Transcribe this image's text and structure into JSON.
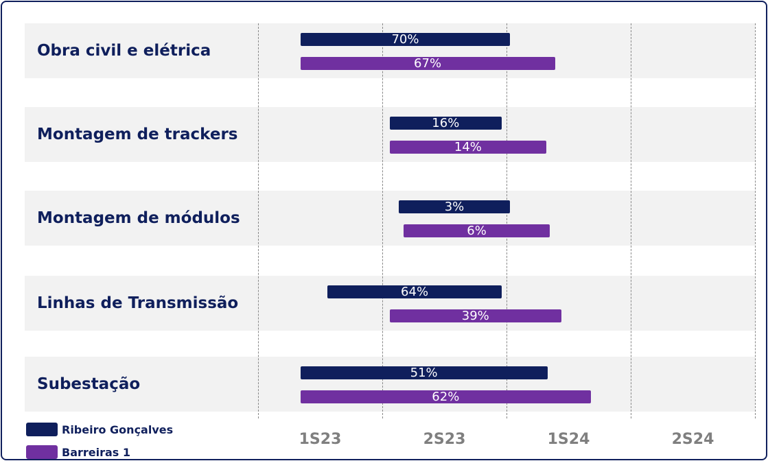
{
  "chart_data": {
    "type": "gantt",
    "categories": [
      "Obra civil e elétrica",
      "Montagem de trackers",
      "Montagem de módulos",
      "Linhas de Transmissão",
      "Subestação"
    ],
    "periods": [
      "1S23",
      "2S23",
      "1S24",
      "2S24"
    ],
    "xlim": [
      0,
      4
    ],
    "xticks": [
      0,
      1,
      2,
      3,
      4
    ],
    "grid": true,
    "series": [
      {
        "name": "Ribeiro Gonçalves",
        "color": "#0f1f5c",
        "start": [
          0.34,
          1.06,
          1.13,
          0.56,
          0.34
        ],
        "end": [
          2.03,
          1.96,
          2.03,
          1.96,
          2.33
        ],
        "values": [
          70,
          16,
          3,
          64,
          51
        ],
        "value_labels": [
          "70%",
          "16%",
          "3%",
          "64%",
          "51%"
        ]
      },
      {
        "name": "Barreiras 1",
        "color": "#7030a0",
        "start": [
          0.34,
          1.06,
          1.17,
          1.06,
          0.34
        ],
        "end": [
          2.39,
          2.32,
          2.35,
          2.44,
          2.68
        ],
        "values": [
          67,
          14,
          6,
          39,
          62
        ],
        "value_labels": [
          "67%",
          "14%",
          "6%",
          "39%",
          "62%"
        ]
      }
    ]
  }
}
